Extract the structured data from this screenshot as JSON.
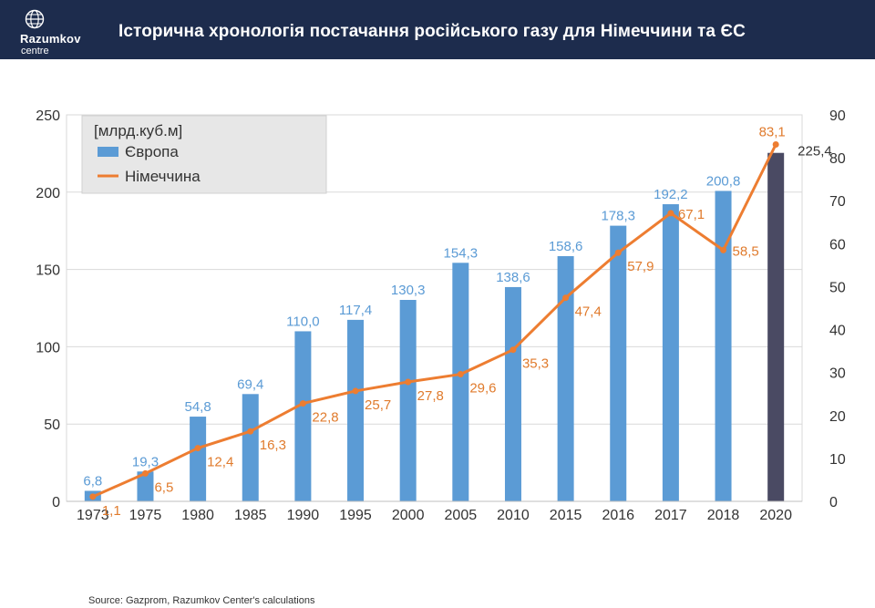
{
  "header": {
    "logo_name": "Razumkov",
    "logo_sub": "centre",
    "title": "Історична хронологія постачання російського газу для Німеччини та ЄС"
  },
  "colors": {
    "header_bg": "#1d2c4d",
    "bar": "#5b9bd5",
    "bar_highlight": "#4a4a63",
    "line": "#ed7d31",
    "bar_label": "#5b9bd5",
    "line_label": "#e07b2d"
  },
  "chart_data": {
    "type": "bar",
    "categories": [
      "1973",
      "1975",
      "1980",
      "1985",
      "1990",
      "1995",
      "2000",
      "2005",
      "2010",
      "2015",
      "2016",
      "2017",
      "2018",
      "2020"
    ],
    "series": [
      {
        "name": "Європа",
        "type": "bar",
        "axis": "left",
        "values": [
          6.8,
          19.3,
          54.8,
          69.4,
          110.0,
          117.4,
          130.3,
          154.3,
          138.6,
          158.6,
          178.3,
          192.2,
          200.8,
          225.4
        ],
        "labels": [
          "6,8",
          "19,3",
          "54,8",
          "69,4",
          "110,0",
          "117,4",
          "130,3",
          "154,3",
          "138,6",
          "158,6",
          "178,3",
          "192,2",
          "200,8",
          "225,4"
        ],
        "highlight_index": 13
      },
      {
        "name": "Німеччина",
        "type": "line",
        "axis": "right",
        "values": [
          1.1,
          6.5,
          12.4,
          16.3,
          22.8,
          25.7,
          27.8,
          29.6,
          35.3,
          47.4,
          57.9,
          67.1,
          58.5,
          83.1
        ],
        "labels": [
          "1,1",
          "6,5",
          "12,4",
          "16,3",
          "22,8",
          "25,7",
          "27,8",
          "29,6",
          "35,3",
          "47,4",
          "57,9",
          "67,1",
          "58,5",
          "83,1"
        ]
      }
    ],
    "unit_label": "[млрд.куб.м]",
    "y_left": {
      "lim": [
        0,
        250
      ],
      "ticks": [
        "0",
        "50",
        "100",
        "150",
        "200",
        "250"
      ]
    },
    "y_right": {
      "lim": [
        0,
        90
      ],
      "ticks": [
        "0",
        "10",
        "20",
        "30",
        "40",
        "50",
        "60",
        "70",
        "80",
        "90"
      ]
    },
    "grid": true,
    "legend_position": "top-left"
  },
  "footer": {
    "source": "Source: Gazprom, Razumkov Center's calculations"
  }
}
